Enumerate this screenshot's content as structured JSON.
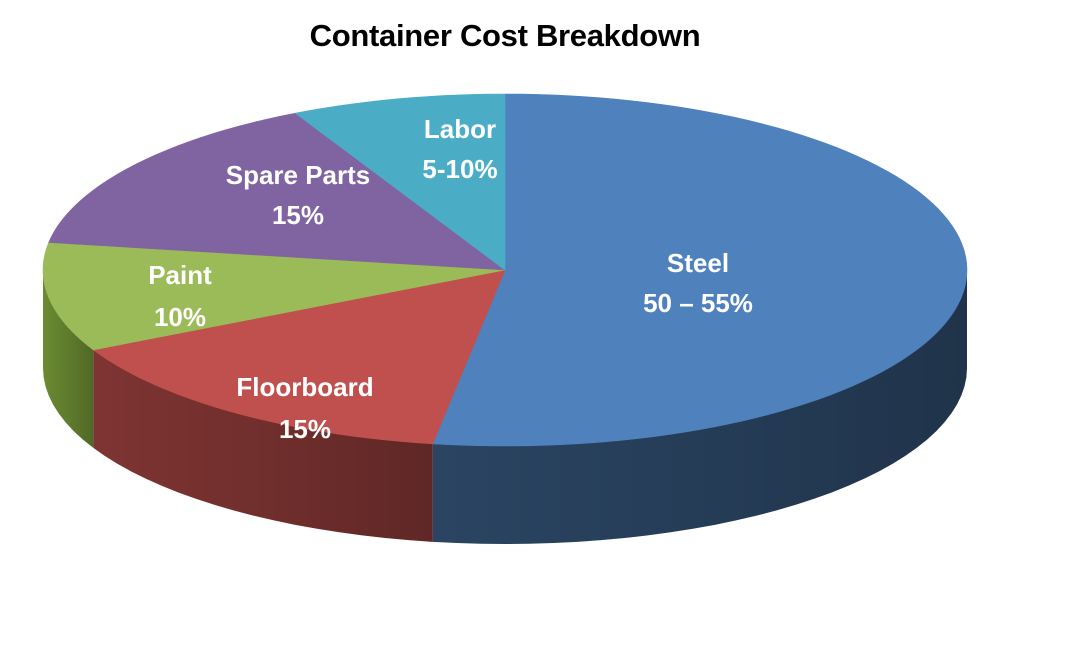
{
  "chart_data": {
    "type": "pie",
    "title": "Container Cost Breakdown",
    "style": "3d",
    "slices": [
      {
        "name": "Steel",
        "value_label": "50 – 55%",
        "value": 52.5,
        "color": "#4F81BD",
        "side_color": "#2A4462"
      },
      {
        "name": "Floorboard",
        "value_label": "15%",
        "value": 15,
        "color": "#C0504D",
        "side_color": "#7E3432"
      },
      {
        "name": "Paint",
        "value_label": "10%",
        "value": 10,
        "color": "#9BBB59",
        "side_color": "#6A8A32"
      },
      {
        "name": "Spare Parts",
        "value_label": "15%",
        "value": 15,
        "color": "#8064A2",
        "side_color": "#5A4574"
      },
      {
        "name": "Labor",
        "value_label": "5-10%",
        "value": 7.5,
        "color": "#4BACC6",
        "side_color": "#2E7C92"
      }
    ]
  }
}
